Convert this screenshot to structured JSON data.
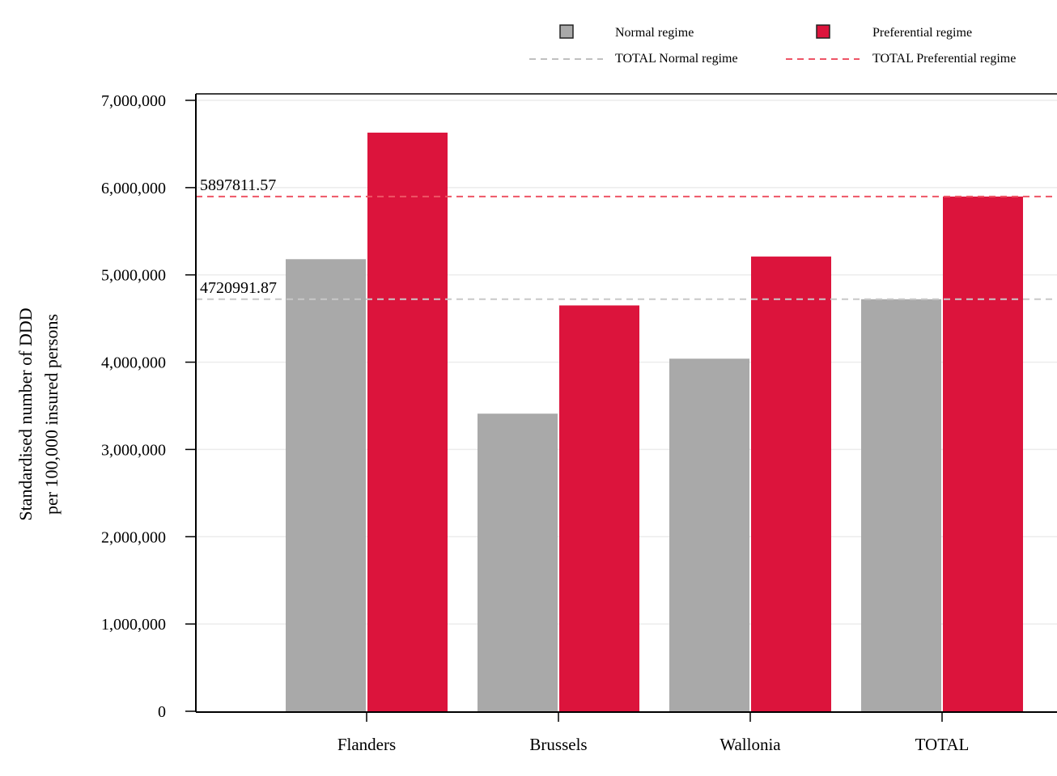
{
  "chart_data": {
    "type": "bar",
    "categories": [
      "Flanders",
      "Brussels",
      "Wallonia",
      "TOTAL"
    ],
    "series": [
      {
        "name": "Normal regime",
        "color": "#a9a9a9",
        "values": [
          5180000,
          3410000,
          4040000,
          4720991.87
        ]
      },
      {
        "name": "Preferential regime",
        "color": "#dc143c",
        "values": [
          6630000,
          4650000,
          5210000,
          5897811.57
        ]
      }
    ],
    "reference_lines": [
      {
        "name": "TOTAL Normal regime",
        "value": 4720991.87,
        "label": "4720991.87",
        "color": "#c8c8c8",
        "style": "dashed"
      },
      {
        "name": "TOTAL Preferential regime",
        "value": 5897811.57,
        "label": "5897811.57",
        "color": "#ee5566",
        "style": "dashed"
      }
    ],
    "ylabel_lines": [
      "Standardised number of DDD",
      "per 100,000 insured persons"
    ],
    "xlabel": "",
    "ylim": [
      0,
      7000000
    ],
    "yticks": [
      0,
      1000000,
      2000000,
      3000000,
      4000000,
      5000000,
      6000000,
      7000000
    ],
    "ytick_labels": [
      "0",
      "1,000,000",
      "2,000,000",
      "3,000,000",
      "4,000,000",
      "5,000,000",
      "6,000,000",
      "7,000,000"
    ],
    "grid": true,
    "legend_position": "top-right"
  }
}
